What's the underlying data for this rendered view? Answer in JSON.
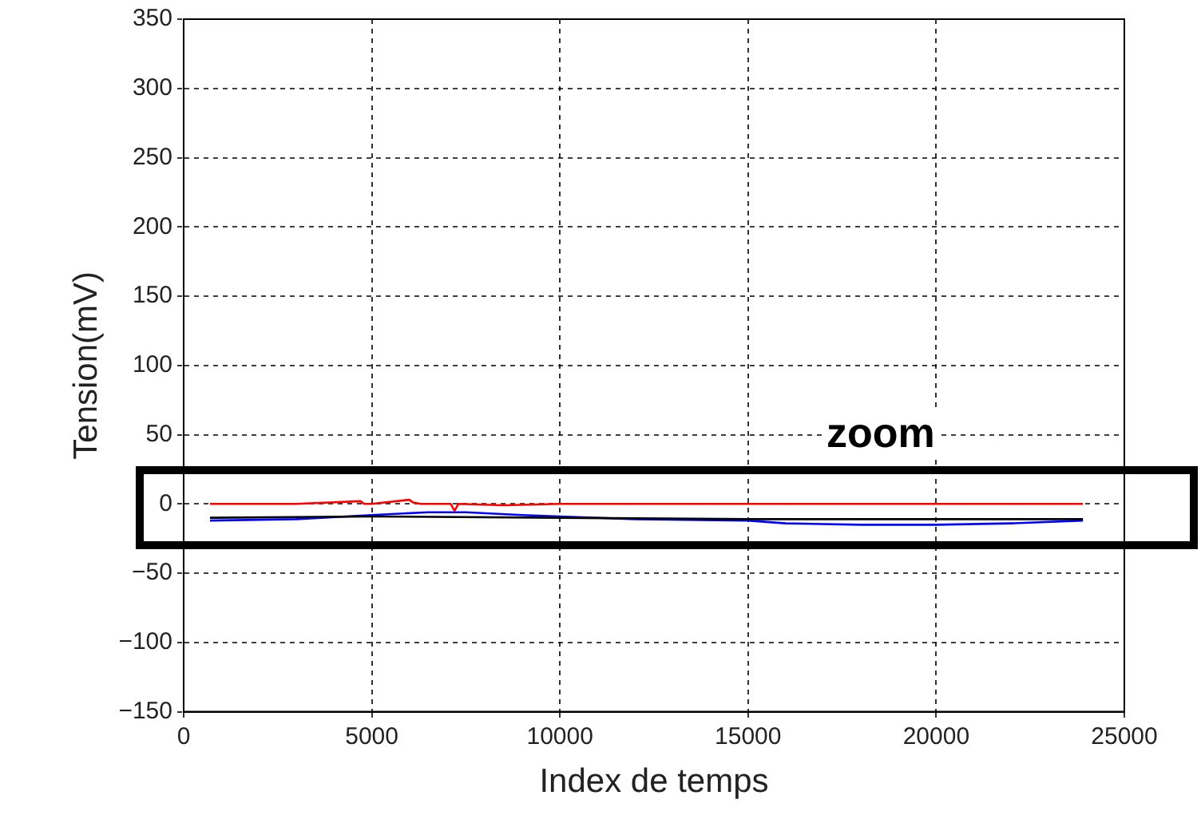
{
  "chart_data": {
    "type": "line",
    "xlabel": "Index de temps",
    "ylabel": "Tension(mV)",
    "annotations": [
      "zoom"
    ],
    "xlim": [
      0,
      25000
    ],
    "xticks": [
      0,
      5000,
      10000,
      15000,
      20000,
      25000
    ],
    "ylim": [
      -150,
      350
    ],
    "yticks": [
      -150,
      -100,
      -50,
      0,
      50,
      100,
      150,
      200,
      250,
      300,
      350
    ],
    "grid": true,
    "legend": false,
    "marker": "none",
    "line_style": "solid",
    "series": [
      {
        "color": "#ff0000",
        "x": [
          700,
          3000,
          4700,
          4800,
          5000,
          6000,
          6100,
          6300,
          7100,
          7200,
          7300,
          8500,
          10000,
          15000,
          20000,
          23900
        ],
        "values": [
          0,
          0,
          2,
          0,
          0,
          3,
          1,
          0,
          0,
          -5,
          0,
          -1,
          0,
          0,
          0,
          0
        ]
      },
      {
        "color": "#000000",
        "x": [
          700,
          5000,
          10000,
          15000,
          20000,
          23900
        ],
        "values": [
          -10,
          -9,
          -10,
          -11,
          -11,
          -11
        ]
      },
      {
        "color": "#0000ff",
        "x": [
          700,
          3000,
          5000,
          6500,
          7500,
          9000,
          10000,
          12000,
          15000,
          16000,
          18000,
          20000,
          22000,
          23900
        ],
        "values": [
          -12,
          -11,
          -8,
          -6,
          -6,
          -8,
          -9,
          -11,
          -12,
          -14,
          -15,
          -15,
          -14,
          -12
        ]
      }
    ]
  }
}
